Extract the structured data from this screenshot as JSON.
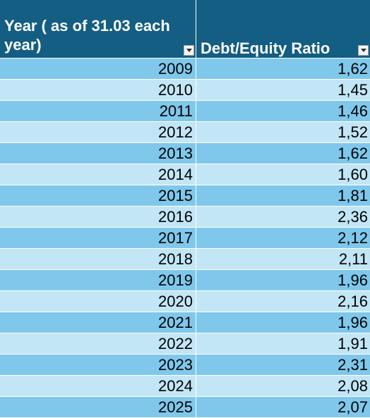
{
  "header": {
    "col1": "Year ( as of 31.03 each year)",
    "col2": "Debt/Equity Ratio",
    "filter_icon": "dropdown-arrow-icon"
  },
  "rows": [
    {
      "year": "2009",
      "ratio": "1,62"
    },
    {
      "year": "2010",
      "ratio": "1,45"
    },
    {
      "year": "2011",
      "ratio": "1,46"
    },
    {
      "year": "2012",
      "ratio": "1,52"
    },
    {
      "year": "2013",
      "ratio": "1,62"
    },
    {
      "year": "2014",
      "ratio": "1,60"
    },
    {
      "year": "2015",
      "ratio": "1,81"
    },
    {
      "year": "2016",
      "ratio": "2,36"
    },
    {
      "year": "2017",
      "ratio": "2,12"
    },
    {
      "year": "2018",
      "ratio": "2,11"
    },
    {
      "year": "2019",
      "ratio": "1,96"
    },
    {
      "year": "2020",
      "ratio": "2,16"
    },
    {
      "year": "2021",
      "ratio": "1,96"
    },
    {
      "year": "2022",
      "ratio": "1,91"
    },
    {
      "year": "2023",
      "ratio": "2,31"
    },
    {
      "year": "2024",
      "ratio": "2,08"
    },
    {
      "year": "2025",
      "ratio": "2,07"
    }
  ],
  "colors": {
    "header_bg": "#135e82",
    "row_dark": "#7fc8ec",
    "row_light": "#c2e6f6"
  }
}
